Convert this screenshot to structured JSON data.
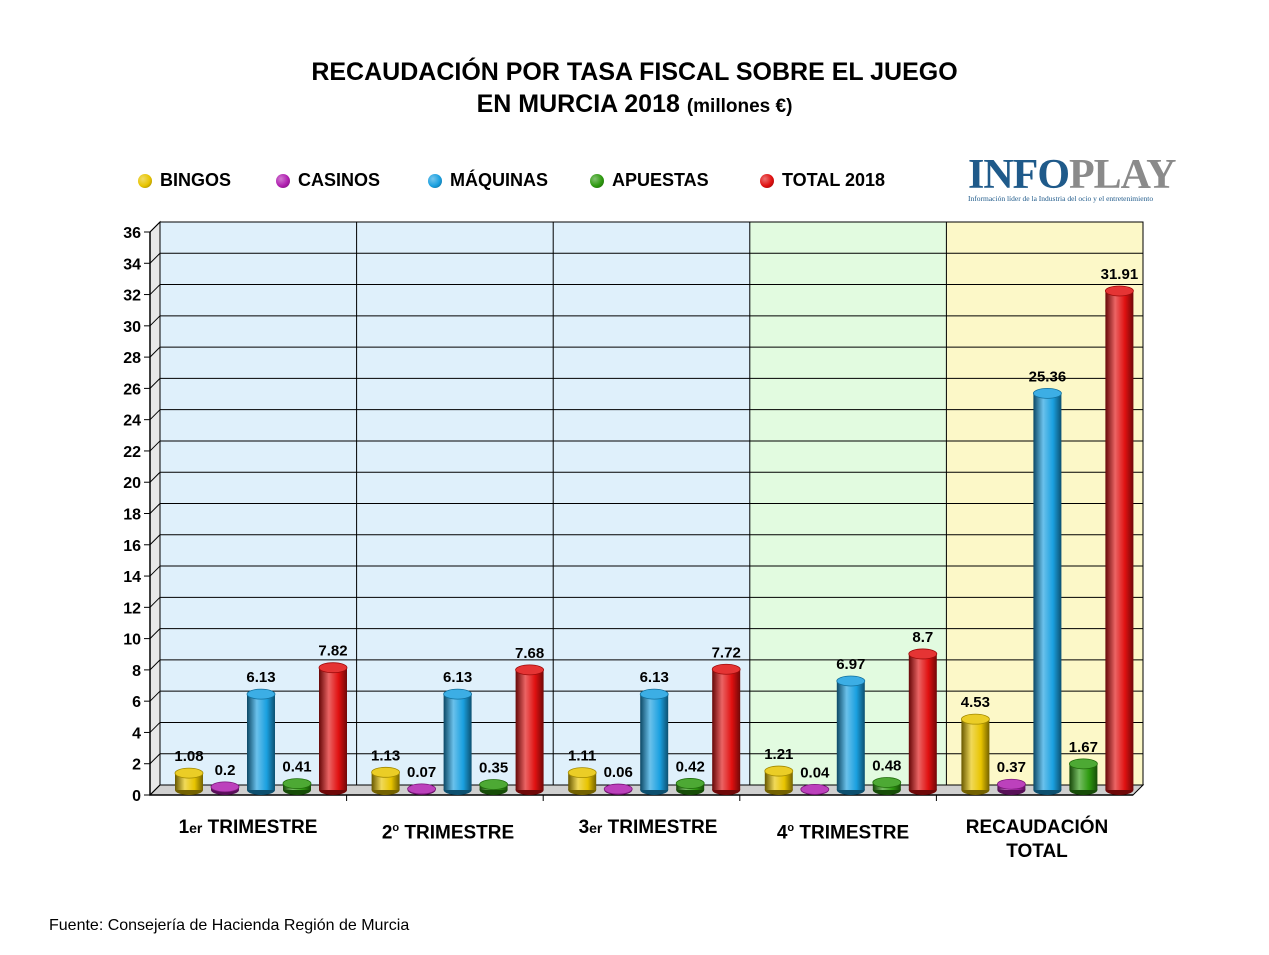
{
  "title_line1": "RECAUDACIÓN POR TASA FISCAL SOBRE EL JUEGO",
  "title_line2": "EN MURCIA 2018",
  "title_unit": "(millones €)",
  "logo": {
    "brand_a": "INFO",
    "brand_b": "PLAY",
    "tagline": "Información líder de la Industria del ocio y el entretenimiento"
  },
  "source": "Fuente: Consejería de Hacienda Región de Murcia",
  "colors": {
    "bingos": "#e8c400",
    "casinos": "#b01fb0",
    "maquinas": "#1aa0e0",
    "apuestas": "#2e9a10",
    "total": "#e01010",
    "panel_quarters": "#dff0fb",
    "panel_q4": "#e2fbe0",
    "panel_total": "#fcf8c8"
  },
  "chart_data": {
    "type": "bar",
    "categories": [
      "1er TRIMESTRE",
      "2º TRIMESTRE",
      "3er TRIMESTRE",
      "4º TRIMESTRE",
      "RECAUDACIÓN TOTAL"
    ],
    "category_display": [
      {
        "num": "1",
        "sup": "er",
        "text": " TRIMESTRE"
      },
      {
        "num": "2",
        "sup": "o",
        "text": " TRIMESTRE"
      },
      {
        "num": "3",
        "sup": "er",
        "text": " TRIMESTRE"
      },
      {
        "num": "4",
        "sup": "o",
        "text": " TRIMESTRE"
      },
      {
        "num": "",
        "sup": "",
        "text": "RECAUDACIÓN TOTAL"
      }
    ],
    "series": [
      {
        "name": "BINGOS",
        "color": "#e8c400",
        "values": [
          1.08,
          1.13,
          1.11,
          1.21,
          4.53
        ]
      },
      {
        "name": "CASINOS",
        "color": "#b01fb0",
        "values": [
          0.2,
          0.07,
          0.06,
          0.04,
          0.37
        ]
      },
      {
        "name": "MÁQUINAS",
        "color": "#1aa0e0",
        "values": [
          6.13,
          6.13,
          6.13,
          6.97,
          25.36
        ]
      },
      {
        "name": "APUESTAS",
        "color": "#2e9a10",
        "values": [
          0.41,
          0.35,
          0.42,
          0.48,
          1.67
        ]
      },
      {
        "name": "TOTAL 2018",
        "color": "#e01010",
        "values": [
          7.82,
          7.68,
          7.72,
          8.7,
          31.91
        ]
      }
    ],
    "ylim": [
      0,
      36
    ],
    "yticks": [
      0,
      2,
      4,
      6,
      8,
      10,
      12,
      14,
      16,
      18,
      20,
      22,
      24,
      26,
      28,
      30,
      32,
      34,
      36
    ],
    "legend": "top",
    "grid": true
  }
}
